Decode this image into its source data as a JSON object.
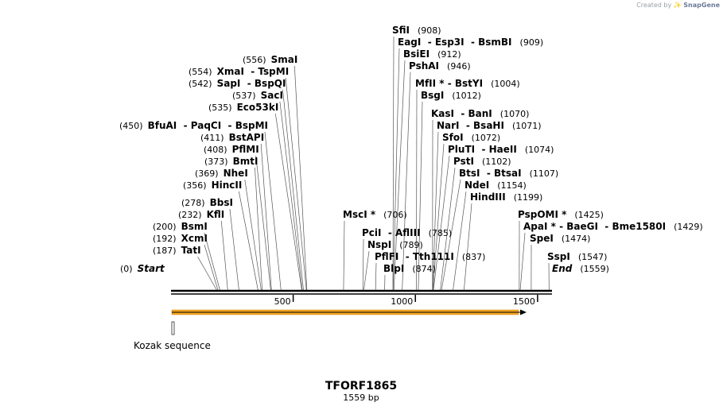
{
  "credit": {
    "prefix": "Created by",
    "brand": "SnapGene"
  },
  "construct": {
    "name": "TFORF1865",
    "length_label": "1559 bp"
  },
  "chart_data": {
    "type": "sequence_map",
    "sequence_length_bp": 1559,
    "axis_ticks": [
      {
        "bp": 500,
        "label": "500"
      },
      {
        "bp": 1000,
        "label": "1000"
      },
      {
        "bp": 1500,
        "label": "1500"
      }
    ],
    "features": [
      {
        "name": "orf_arrow",
        "start": 1,
        "end": 1470,
        "direction": "forward",
        "color": "#f5a623"
      },
      {
        "name": "Kozak sequence",
        "start": 1,
        "end": 10
      }
    ],
    "sites": [
      {
        "label": "Start",
        "pos": "(0)",
        "bp": 0,
        "italic": true
      },
      {
        "label": "TatI",
        "pos": "(187)",
        "bp": 187
      },
      {
        "label": "XcmI",
        "pos": "(192)",
        "bp": 192
      },
      {
        "label": "BsmI",
        "pos": "(200)",
        "bp": 200
      },
      {
        "label": "KflI",
        "pos": "(232)",
        "bp": 232
      },
      {
        "label": "BbsI",
        "pos": "(278)",
        "bp": 278
      },
      {
        "label": "HincII",
        "pos": "(356)",
        "bp": 356
      },
      {
        "label": "NheI",
        "pos": "(369)",
        "bp": 369
      },
      {
        "label": "BmtI",
        "pos": "(373)",
        "bp": 373
      },
      {
        "label": "PflMI",
        "pos": "(408)",
        "bp": 408
      },
      {
        "label": "BstAPI",
        "pos": "(411)",
        "bp": 411
      },
      {
        "label": "BfuAI  - PaqCI  - BspMI",
        "pos": "(450)",
        "bp": 450
      },
      {
        "label": "Eco53kI",
        "pos": "(535)",
        "bp": 535
      },
      {
        "label": "SacI",
        "pos": "(537)",
        "bp": 537
      },
      {
        "label": "SapI  - BspQI",
        "pos": "(542)",
        "bp": 542
      },
      {
        "label": "XmaI  - TspMI",
        "pos": "(554)",
        "bp": 554
      },
      {
        "label": "SmaI",
        "pos": "(556)",
        "bp": 556
      },
      {
        "label": "MscI *",
        "pos": "(706)",
        "bp": 706
      },
      {
        "label": "PciI  - AflIII",
        "pos": "(785)",
        "bp": 785
      },
      {
        "label": "NspI",
        "pos": "(789)",
        "bp": 789
      },
      {
        "label": "PflFI  - Tth111I",
        "pos": "(837)",
        "bp": 837
      },
      {
        "label": "BlpI",
        "pos": "(874)",
        "bp": 874
      },
      {
        "label": "SfiI",
        "pos": "(908)",
        "bp": 908
      },
      {
        "label": "EagI  - Esp3I  - BsmBI",
        "pos": "(909)",
        "bp": 909
      },
      {
        "label": "BsiEI",
        "pos": "(912)",
        "bp": 912
      },
      {
        "label": "PshAI",
        "pos": "(946)",
        "bp": 946
      },
      {
        "label": "MfII * - BstYI",
        "pos": "(1004)",
        "bp": 1004
      },
      {
        "label": "BsgI",
        "pos": "(1012)",
        "bp": 1012
      },
      {
        "label": "KasI  - BanI",
        "pos": "(1070)",
        "bp": 1070
      },
      {
        "label": "NarI  - BsaHI",
        "pos": "(1071)",
        "bp": 1071
      },
      {
        "label": "SfoI",
        "pos": "(1072)",
        "bp": 1072
      },
      {
        "label": "PluTI  - HaeII",
        "pos": "(1074)",
        "bp": 1074
      },
      {
        "label": "PstI",
        "pos": "(1102)",
        "bp": 1102
      },
      {
        "label": "BtsI  - BtsaI",
        "pos": "(1107)",
        "bp": 1107
      },
      {
        "label": "NdeI",
        "pos": "(1154)",
        "bp": 1154
      },
      {
        "label": "HindIII",
        "pos": "(1199)",
        "bp": 1199
      },
      {
        "label": "PspOMI *",
        "pos": "(1425)",
        "bp": 1425
      },
      {
        "label": "ApaI * - BaeGI  - Bme1580I",
        "pos": "(1429)",
        "bp": 1429
      },
      {
        "label": "SpeI",
        "pos": "(1474)",
        "bp": 1474
      },
      {
        "label": "SspI",
        "pos": "(1547)",
        "bp": 1547
      },
      {
        "label": "End",
        "pos": "(1559)",
        "bp": 1559,
        "italic": true
      }
    ]
  }
}
